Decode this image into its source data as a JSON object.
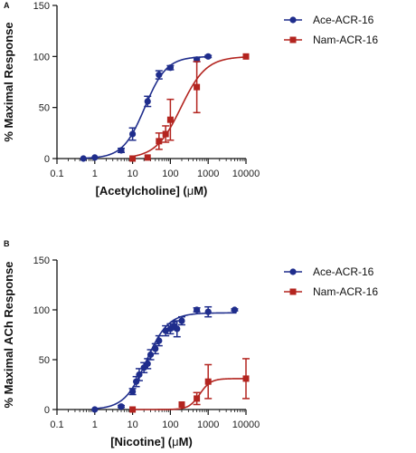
{
  "colors": {
    "ace": "#1f2d8c",
    "nam": "#b3241f",
    "axis": "#111111"
  },
  "chart_data": [
    {
      "panel_label": "A",
      "type": "scatter",
      "x_scale": "log",
      "xlabel_parts": [
        "[Acetylcholine] (",
        "μ",
        "M)"
      ],
      "ylabel": "% Maximal Response",
      "xlim": [
        0.1,
        10000
      ],
      "ylim": [
        0,
        150
      ],
      "x_ticks": [
        0.1,
        1,
        10,
        100,
        1000,
        10000
      ],
      "x_tick_labels": [
        "0.1",
        "1",
        "10",
        "100",
        "1000",
        "10000"
      ],
      "y_ticks": [
        0,
        50,
        100,
        150
      ],
      "y_tick_labels": [
        "0",
        "50",
        "100",
        "150"
      ],
      "legend_position": "top-right",
      "series": [
        {
          "name": "Ace-ACR-16",
          "marker": "circle",
          "color": "#1f2d8c",
          "x": [
            0.5,
            1,
            5,
            10,
            25,
            50,
            100,
            500,
            1000
          ],
          "y": [
            0,
            1,
            8,
            24,
            56,
            82,
            89,
            97,
            100
          ],
          "err": [
            0,
            0,
            2,
            6,
            5,
            4,
            2,
            2,
            1
          ],
          "fit": {
            "bottom": 0,
            "top": 100,
            "ec50": 21,
            "hill": 1.5
          }
        },
        {
          "name": "Nam-ACR-16",
          "marker": "square",
          "color": "#b3241f",
          "x": [
            10,
            25,
            50,
            75,
            100,
            500,
            10000
          ],
          "y": [
            0,
            1,
            17,
            24,
            38,
            70,
            100
          ],
          "err": [
            0,
            0,
            8,
            8,
            20,
            25,
            0
          ],
          "fit": {
            "bottom": 0,
            "top": 100,
            "ec50": 190,
            "hill": 1.3
          }
        }
      ]
    },
    {
      "panel_label": "B",
      "type": "scatter",
      "x_scale": "log",
      "xlabel_parts": [
        "[Nicotine] (",
        "μ",
        "M)"
      ],
      "ylabel": "% Maximal  ACh Response",
      "xlim": [
        0.1,
        10000
      ],
      "ylim": [
        0,
        150
      ],
      "x_ticks": [
        0.1,
        1,
        10,
        100,
        1000,
        10000
      ],
      "x_tick_labels": [
        "0.1",
        "1",
        "10",
        "100",
        "1000",
        "10000"
      ],
      "y_ticks": [
        0,
        50,
        100,
        150
      ],
      "y_tick_labels": [
        "0",
        "50",
        "100",
        "150"
      ],
      "legend_position": "top-right",
      "series": [
        {
          "name": "Ace-ACR-16",
          "marker": "circle",
          "color": "#1f2d8c",
          "x": [
            1,
            5,
            10,
            12.5,
            15,
            20,
            25,
            30,
            40,
            50,
            75,
            100,
            125,
            150,
            200,
            500,
            1000,
            5000
          ],
          "y": [
            0,
            3,
            18,
            28,
            35,
            42,
            46,
            55,
            61,
            69,
            79,
            81,
            84,
            81,
            89,
            100,
            98,
            100
          ],
          "err": [
            0,
            1,
            3,
            5,
            6,
            5,
            5,
            5,
            5,
            5,
            5,
            5,
            4,
            8,
            4,
            2,
            5,
            1
          ],
          "fit": {
            "bottom": 0,
            "top": 97,
            "ec50": 23,
            "hill": 1.5
          }
        },
        {
          "name": "Nam-ACR-16",
          "marker": "square",
          "color": "#b3241f",
          "x": [
            10,
            200,
            500,
            1000,
            10000
          ],
          "y": [
            0,
            5,
            11,
            28,
            31
          ],
          "err": [
            0,
            0,
            6,
            17,
            20
          ],
          "fit": {
            "bottom": 0,
            "top": 31,
            "ec50": 600,
            "hill": 3
          }
        }
      ]
    }
  ]
}
